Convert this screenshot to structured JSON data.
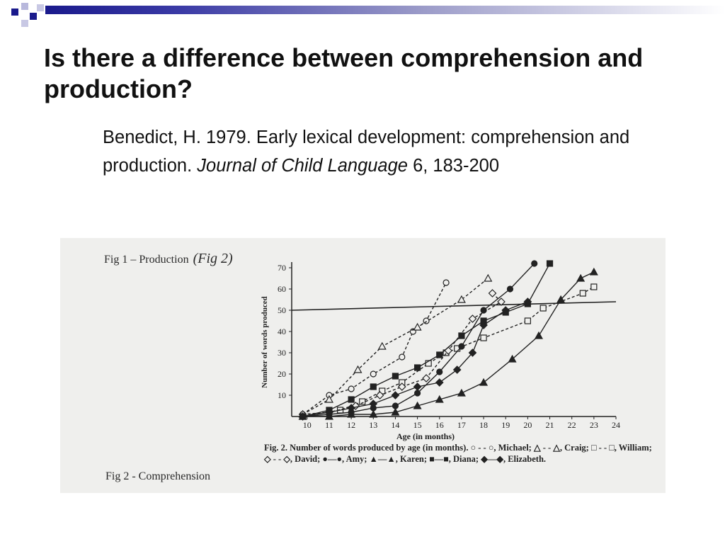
{
  "slide": {
    "title": "Is there a difference between comprehension and production?",
    "citation_plain": "Benedict, H. 1979. Early lexical development: comprehension and production.",
    "citation_journal": " Journal of Child Language",
    "citation_tail": " 6, 183-200"
  },
  "figure": {
    "label_top": "Fig 1 – Production",
    "label_top_handwritten": "(Fig 2)",
    "label_bottom": "Fig 2 - Comprehension",
    "caption": "Fig. 2. Number of words produced by age (in months). ○ - - ○, Michael; △ - - △, Craig; □ - - □, William; ◇ - - ◇, David; ●—●, Amy; ▲—▲, Karen; ■—■, Diana; ◆—◆, Elizabeth."
  },
  "chart_data": {
    "type": "line",
    "xlabel": "Age (in months)",
    "ylabel": "Number of words produced",
    "xlim": [
      9.3,
      24
    ],
    "ylim": [
      0,
      70
    ],
    "xticks": [
      10,
      11,
      12,
      13,
      14,
      15,
      16,
      17,
      18,
      19,
      20,
      21,
      22,
      23,
      24
    ],
    "yticks": [
      10,
      20,
      30,
      40,
      50,
      60,
      70
    ],
    "reference_line": {
      "y": [
        50,
        54
      ],
      "x": [
        9.3,
        24
      ]
    },
    "series": [
      {
        "name": "Michael",
        "marker": "circle-open",
        "dash": true,
        "points": [
          [
            9.8,
            1
          ],
          [
            11,
            10
          ],
          [
            12,
            13
          ],
          [
            13,
            20
          ],
          [
            14.3,
            28
          ],
          [
            14.8,
            40
          ],
          [
            15.4,
            45
          ],
          [
            16.3,
            63
          ]
        ]
      },
      {
        "name": "Craig",
        "marker": "triangle-open",
        "dash": true,
        "points": [
          [
            9.8,
            1
          ],
          [
            11,
            8
          ],
          [
            12.3,
            22
          ],
          [
            13.4,
            33
          ],
          [
            15,
            42
          ],
          [
            17,
            55
          ],
          [
            18.2,
            65
          ]
        ]
      },
      {
        "name": "William",
        "marker": "square-open",
        "dash": true,
        "points": [
          [
            9.8,
            0
          ],
          [
            11.5,
            3
          ],
          [
            12.5,
            7
          ],
          [
            13.4,
            12
          ],
          [
            14.3,
            16
          ],
          [
            15.5,
            25
          ],
          [
            16.3,
            30
          ],
          [
            16.8,
            32
          ],
          [
            18,
            37
          ],
          [
            20,
            45
          ],
          [
            20.7,
            51
          ],
          [
            22.5,
            58
          ],
          [
            23,
            61
          ]
        ]
      },
      {
        "name": "David",
        "marker": "diamond-open",
        "dash": true,
        "points": [
          [
            9.8,
            1
          ],
          [
            11,
            2
          ],
          [
            12.2,
            5
          ],
          [
            13.3,
            10
          ],
          [
            14.3,
            14
          ],
          [
            15.4,
            18
          ],
          [
            16.4,
            31
          ],
          [
            17.5,
            46
          ],
          [
            18.8,
            54
          ],
          [
            18.4,
            58
          ]
        ]
      },
      {
        "name": "Amy",
        "marker": "circle-filled",
        "dash": false,
        "points": [
          [
            9.8,
            0
          ],
          [
            11,
            1
          ],
          [
            12,
            2
          ],
          [
            13,
            4
          ],
          [
            14,
            5
          ],
          [
            15,
            11
          ],
          [
            16,
            21
          ],
          [
            17,
            33
          ],
          [
            18,
            50
          ],
          [
            19.2,
            60
          ],
          [
            20.3,
            72
          ]
        ]
      },
      {
        "name": "Karen",
        "marker": "triangle-filled",
        "dash": false,
        "points": [
          [
            9.8,
            0
          ],
          [
            11,
            0
          ],
          [
            12,
            1
          ],
          [
            13,
            1
          ],
          [
            14,
            2
          ],
          [
            15,
            5
          ],
          [
            16,
            8
          ],
          [
            17,
            11
          ],
          [
            18,
            16
          ],
          [
            19.3,
            27
          ],
          [
            20.5,
            38
          ],
          [
            21.5,
            55
          ],
          [
            22.4,
            65
          ],
          [
            23,
            68
          ]
        ]
      },
      {
        "name": "Diana",
        "marker": "square-filled",
        "dash": false,
        "points": [
          [
            9.8,
            0
          ],
          [
            11,
            3
          ],
          [
            12,
            8
          ],
          [
            13,
            14
          ],
          [
            14,
            19
          ],
          [
            15,
            23
          ],
          [
            16,
            29
          ],
          [
            17,
            38
          ],
          [
            18,
            45
          ],
          [
            19,
            49
          ],
          [
            20,
            53
          ],
          [
            21,
            72
          ]
        ]
      },
      {
        "name": "Elizabeth",
        "marker": "diamond-filled",
        "dash": false,
        "points": [
          [
            9.8,
            0
          ],
          [
            11,
            2
          ],
          [
            12,
            4
          ],
          [
            13,
            6
          ],
          [
            14,
            10
          ],
          [
            15,
            14
          ],
          [
            16,
            16
          ],
          [
            16.8,
            22
          ],
          [
            17.5,
            30
          ],
          [
            18,
            43
          ],
          [
            19,
            50
          ],
          [
            20,
            54
          ]
        ]
      }
    ]
  },
  "colors": {
    "banner_dark": "#1a1a8c",
    "banner_light": "#9a9ac8",
    "scan_bg": "#efefed",
    "ink": "#222222"
  }
}
